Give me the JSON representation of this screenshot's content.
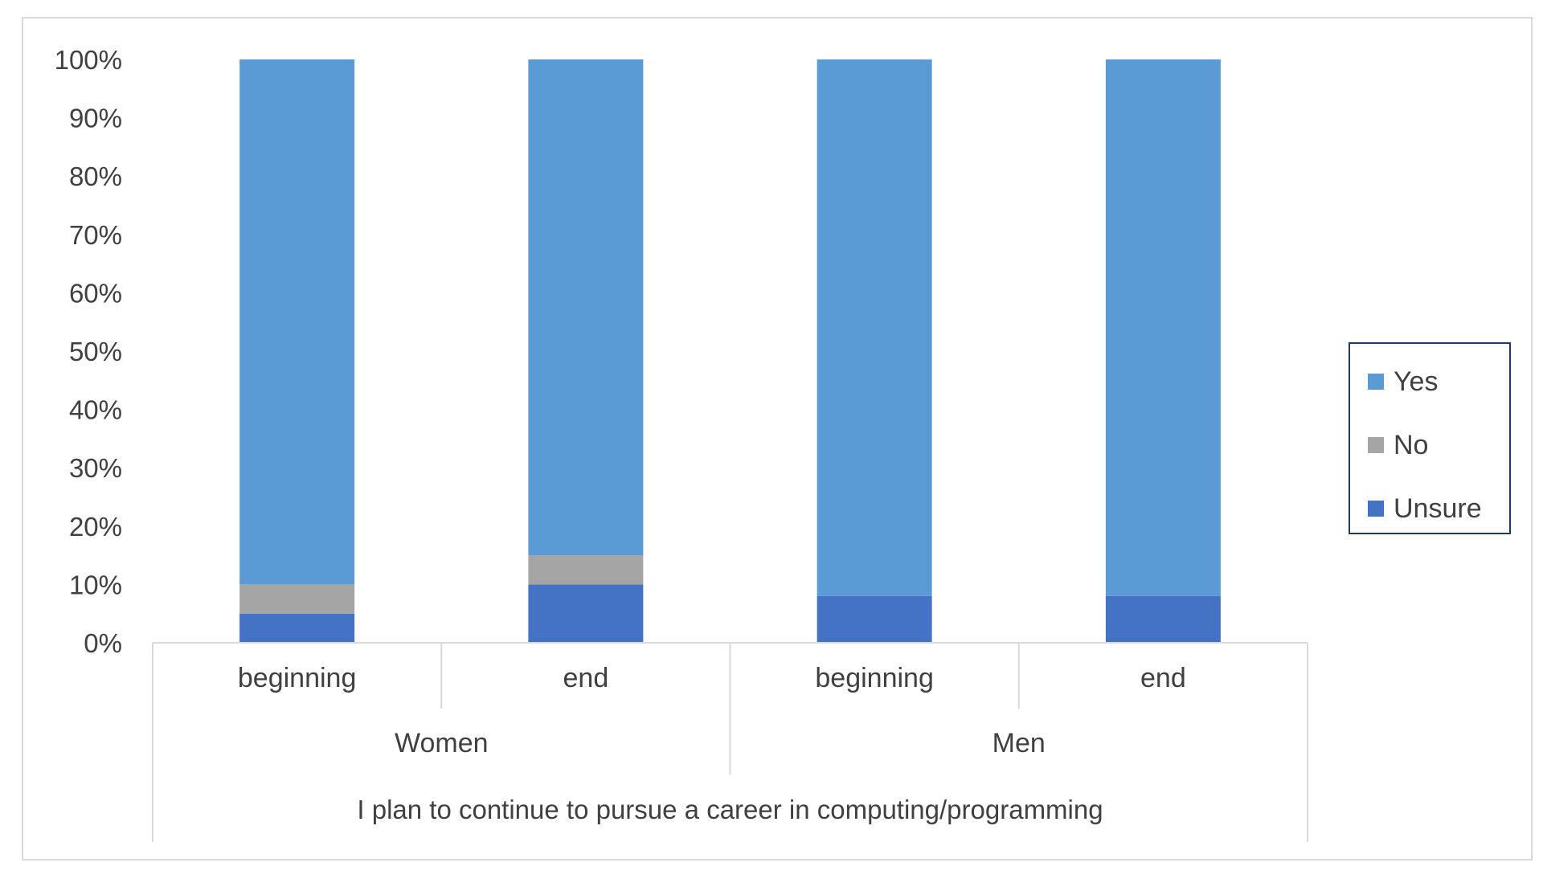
{
  "chart_data": {
    "type": "bar",
    "stacked": true,
    "orientation": "vertical",
    "categories": [
      "beginning",
      "end",
      "beginning",
      "end"
    ],
    "groups": [
      {
        "label": "Women",
        "categories": [
          "beginning",
          "end"
        ]
      },
      {
        "label": "Men",
        "categories": [
          "beginning",
          "end"
        ]
      }
    ],
    "category_title": "I plan to continue to pursue a career in computing/programming",
    "series": [
      {
        "name": "Unsure",
        "color": "#4472c4",
        "values": [
          5,
          10,
          8,
          8
        ]
      },
      {
        "name": "No",
        "color": "#a5a5a5",
        "values": [
          5,
          5,
          0,
          0
        ]
      },
      {
        "name": "Yes",
        "color": "#5b9bd5",
        "values": [
          90,
          85,
          92,
          92
        ]
      }
    ],
    "legend": {
      "position": "right",
      "order": [
        "Yes",
        "No",
        "Unsure"
      ]
    },
    "y_ticks": [
      "0%",
      "10%",
      "20%",
      "30%",
      "40%",
      "50%",
      "60%",
      "70%",
      "80%",
      "90%",
      "100%"
    ],
    "ylim": [
      0,
      100
    ],
    "y_unit": "%",
    "grid": false,
    "colors": {
      "frame": "#d9d9d9",
      "axis_text": "#404040",
      "legend_border": "#1f3864"
    }
  }
}
